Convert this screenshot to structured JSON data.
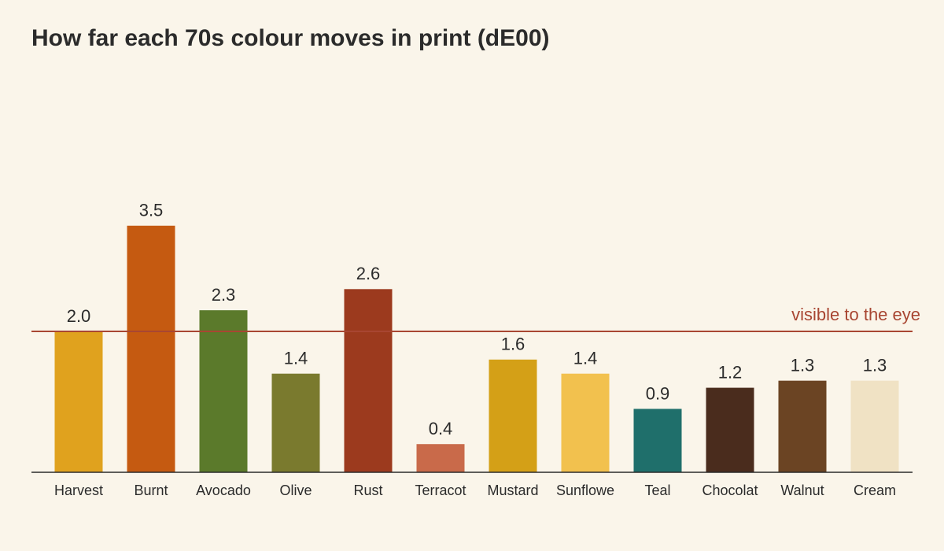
{
  "chart_data": {
    "type": "bar",
    "title": "How far each 70s colour moves in print (dE00)",
    "categories": [
      "Harvest",
      "Burnt",
      "Avocado",
      "Olive",
      "Rust",
      "Terracot",
      "Mustard",
      "Sunflowe",
      "Teal",
      "Chocolat",
      "Walnut",
      "Cream"
    ],
    "values": [
      2.0,
      3.5,
      2.3,
      1.4,
      2.6,
      0.4,
      1.6,
      1.4,
      0.9,
      1.2,
      1.3,
      1.3
    ],
    "value_labels": [
      "2.0",
      "3.5",
      "2.3",
      "1.4",
      "2.6",
      "0.4",
      "1.6",
      "1.4",
      "0.9",
      "1.2",
      "1.3",
      "1.3"
    ],
    "colors": [
      "#e0a21e",
      "#c55a11",
      "#5b7a2b",
      "#7a7a2e",
      "#9c3a1e",
      "#c96a4a",
      "#d4a017",
      "#f2c14e",
      "#1f6f6b",
      "#4a2c1d",
      "#6b4423",
      "#f0e2c4"
    ],
    "reference_line": {
      "value": 2.0,
      "label": "visible to the eye",
      "color": "#a84632"
    }
  }
}
